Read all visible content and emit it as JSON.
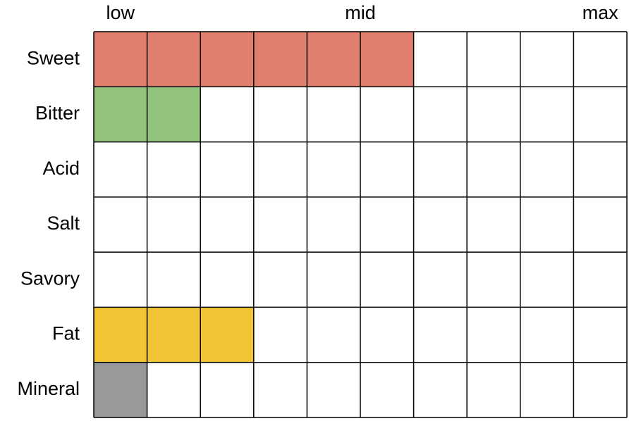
{
  "chart_data": {
    "type": "bar",
    "orientation": "horizontal",
    "categories": [
      "Sweet",
      "Bitter",
      "Acid",
      "Salt",
      "Savory",
      "Fat",
      "Mineral"
    ],
    "values": [
      6,
      2,
      0,
      0,
      0,
      3,
      1
    ],
    "colors": [
      "#e07f6d",
      "#93c47d",
      null,
      null,
      null,
      "#f0c435",
      "#999999"
    ],
    "xlim": [
      0,
      10
    ],
    "xticks": [
      {
        "value": 0.5,
        "label": "low"
      },
      {
        "value": 5,
        "label": "mid"
      },
      {
        "value": 9.5,
        "label": "max"
      }
    ]
  }
}
